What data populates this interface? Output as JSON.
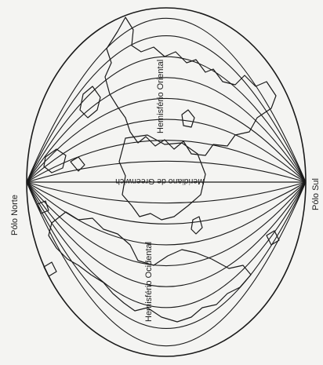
{
  "map": {
    "labels": {
      "north_pole": "Pólo Norte",
      "south_pole": "Pólo Sul",
      "greenwich_meridian": "Meridiano de Greenwich",
      "eastern_hemisphere": "Hemisfério Oriental",
      "western_hemisphere": "Hemisfério Ocidental"
    },
    "colors": {
      "ink": "#1a1a1a",
      "paper": "#f4f4f2"
    }
  }
}
